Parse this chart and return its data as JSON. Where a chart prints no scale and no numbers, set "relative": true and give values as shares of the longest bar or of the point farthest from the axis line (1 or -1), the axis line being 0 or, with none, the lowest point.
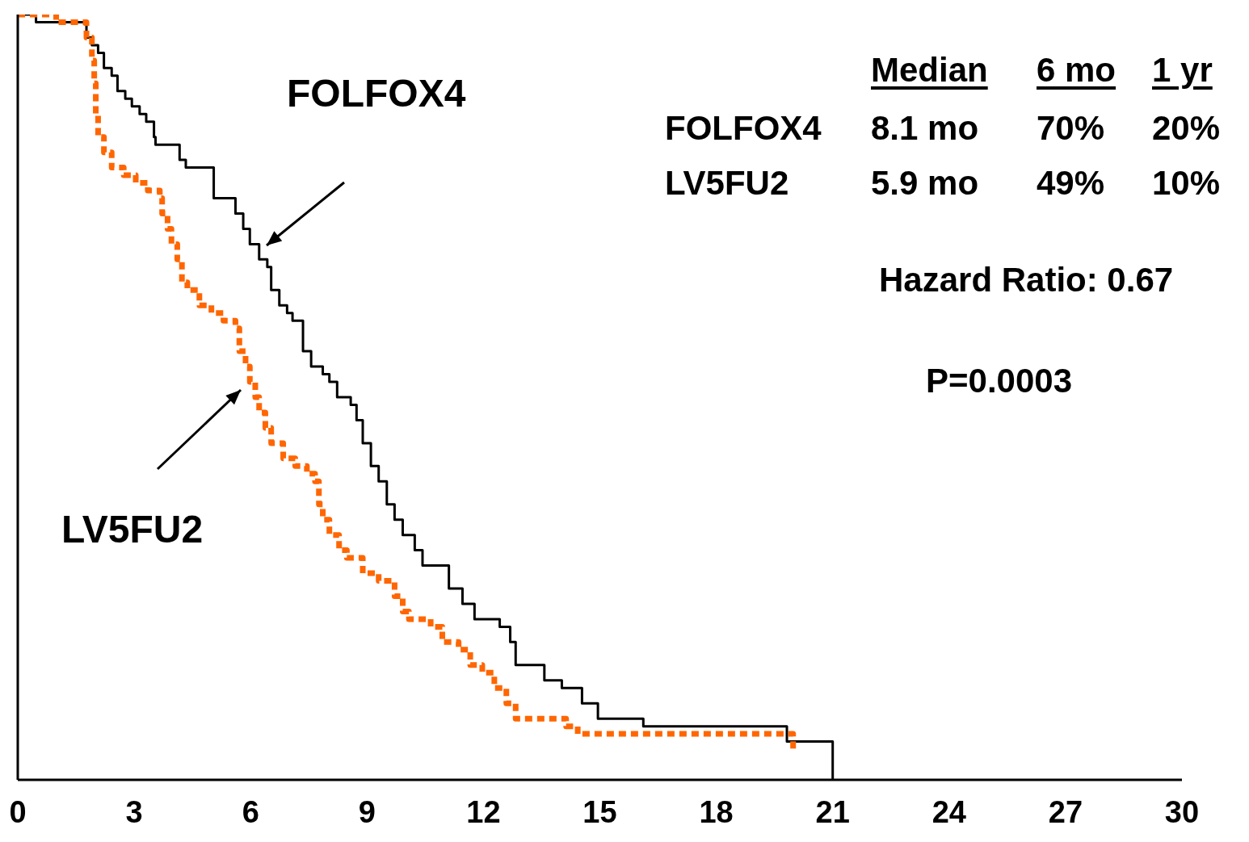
{
  "chart_data": {
    "type": "step",
    "relative": true,
    "xlim": [
      0,
      30
    ],
    "xticks": [
      0,
      3,
      6,
      9,
      12,
      15,
      18,
      21,
      24,
      27,
      30
    ],
    "marker": "none",
    "series": [
      {
        "color": "#000000",
        "line_style": "solid",
        "x": [
          0,
          0.47,
          1.77,
          1.91,
          2.07,
          2.22,
          2.42,
          2.57,
          2.77,
          2.94,
          3.14,
          3.31,
          3.51,
          3.55,
          4.17,
          4.33,
          5.05,
          5.61,
          5.81,
          5.98,
          6.22,
          6.43,
          6.53,
          6.74,
          6.94,
          7.08,
          7.35,
          7.56,
          7.86,
          8.03,
          8.23,
          8.58,
          8.73,
          8.89,
          9.1,
          9.3,
          9.51,
          9.71,
          9.92,
          10.23,
          10.43,
          11.11,
          11.46,
          11.77,
          12.42,
          12.69,
          12.83,
          13.57,
          14.02,
          14.54,
          14.95,
          16.12,
          19.82,
          21
        ],
        "values": [
          1,
          0.99,
          0.97,
          0.96,
          0.95,
          0.93,
          0.92,
          0.9,
          0.89,
          0.88,
          0.87,
          0.86,
          0.84,
          0.83,
          0.81,
          0.8,
          0.76,
          0.74,
          0.72,
          0.7,
          0.68,
          0.67,
          0.64,
          0.62,
          0.61,
          0.6,
          0.56,
          0.54,
          0.53,
          0.52,
          0.5,
          0.49,
          0.47,
          0.44,
          0.41,
          0.39,
          0.36,
          0.34,
          0.32,
          0.3,
          0.28,
          0.25,
          0.23,
          0.21,
          0.2,
          0.18,
          0.15,
          0.13,
          0.12,
          0.1,
          0.08,
          0.07,
          0.05,
          0
        ]
      },
      {
        "color": "#ff6600",
        "line_style": "dashed",
        "x": [
          0,
          0.99,
          1.77,
          1.91,
          1.97,
          2.01,
          2.07,
          2.22,
          2.42,
          2.73,
          3.04,
          3.35,
          3.66,
          3.72,
          3.86,
          3.96,
          4.11,
          4.23,
          4.37,
          4.68,
          4.99,
          5.3,
          5.61,
          5.71,
          5.87,
          5.98,
          6.12,
          6.22,
          6.38,
          6.53,
          6.84,
          7.15,
          7.45,
          7.66,
          7.76,
          7.86,
          8.03,
          8.28,
          8.48,
          8.89,
          9.3,
          9.71,
          9.92,
          10.08,
          10.64,
          10.94,
          11.36,
          11.66,
          11.97,
          12.28,
          12.59,
          12.83,
          14.13,
          14.43,
          19.98
        ],
        "values": [
          1,
          0.99,
          0.97,
          0.94,
          0.91,
          0.87,
          0.84,
          0.82,
          0.8,
          0.79,
          0.78,
          0.77,
          0.76,
          0.74,
          0.72,
          0.7,
          0.68,
          0.65,
          0.64,
          0.62,
          0.61,
          0.6,
          0.59,
          0.56,
          0.54,
          0.52,
          0.5,
          0.48,
          0.46,
          0.44,
          0.42,
          0.41,
          0.4,
          0.39,
          0.36,
          0.34,
          0.32,
          0.3,
          0.29,
          0.27,
          0.26,
          0.24,
          0.22,
          0.21,
          0.2,
          0.18,
          0.17,
          0.15,
          0.14,
          0.12,
          0.1,
          0.08,
          0.07,
          0.06,
          0.04
        ]
      }
    ],
    "annotations": [
      "FOLFOX4",
      "LV5FU2",
      "Median",
      "6 mo",
      "1 yr",
      "FOLFOX4",
      "8.1 mo",
      "70%",
      "20%",
      "LV5FU2",
      "5.9 mo",
      "49%",
      "10%",
      "Hazard Ratio: 0.67",
      "P=0.0003"
    ]
  }
}
